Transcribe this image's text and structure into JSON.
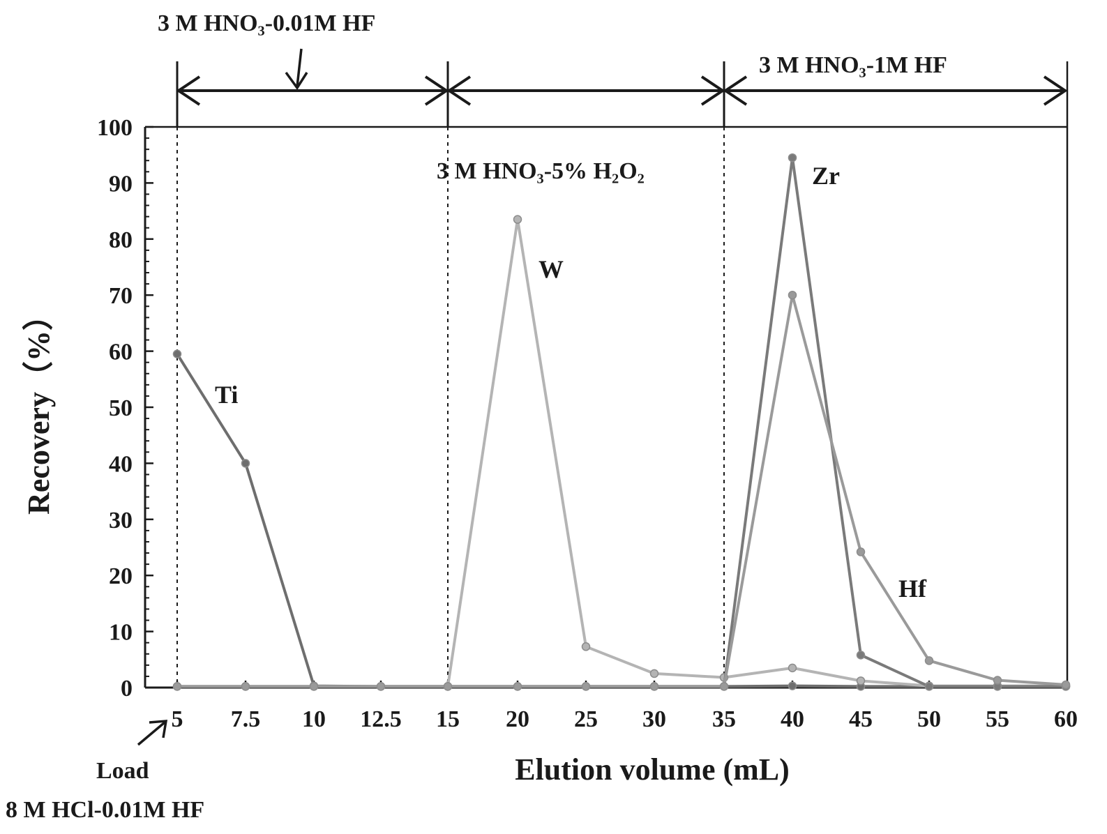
{
  "chart_data": {
    "type": "line",
    "xlabel": "Elution volume (mL)",
    "ylabel": "Recovery（%）",
    "x_ticks": [
      "5",
      "7.5",
      "10",
      "12.5",
      "15",
      "20",
      "25",
      "30",
      "35",
      "40",
      "45",
      "50",
      "55",
      "60"
    ],
    "y_ticks": [
      "0",
      "10",
      "20",
      "30",
      "40",
      "50",
      "60",
      "70",
      "80",
      "90",
      "100"
    ],
    "ylim": [
      0,
      100
    ],
    "grid": false,
    "x": [
      "5",
      "7.5",
      "10",
      "12.5",
      "15",
      "20",
      "25",
      "30",
      "35",
      "40",
      "45",
      "50",
      "55",
      "60"
    ],
    "series": [
      {
        "name": "Ti",
        "color": "#6e6e6e",
        "values": [
          59.5,
          40,
          0.3,
          0.2,
          0.2,
          0.2,
          0.2,
          0.2,
          0.2,
          0.3,
          0.2,
          0.2,
          0.2,
          0.2
        ]
      },
      {
        "name": "W",
        "color": "#b4b4b4",
        "values": [
          0.2,
          0.2,
          0.2,
          0.2,
          0.2,
          83.5,
          7.3,
          2.5,
          1.8,
          3.5,
          1.2,
          0.3,
          0.3,
          0.3
        ]
      },
      {
        "name": "Zr",
        "color": "#7a7a7a",
        "values": [
          0.2,
          0.2,
          0.2,
          0.2,
          0.2,
          0.2,
          0.2,
          0.2,
          0.2,
          94.5,
          5.8,
          0.2,
          0.2,
          0.2
        ]
      },
      {
        "name": "Hf",
        "color": "#9a9a9a",
        "values": [
          0.2,
          0.2,
          0.2,
          0.2,
          0.2,
          0.2,
          0.2,
          0.2,
          0.2,
          70,
          24.2,
          4.8,
          1.3,
          0.5
        ]
      }
    ],
    "annotations": {
      "load": "Load",
      "load_reagent": "8 M HCl-0.01M HF",
      "step1": "3 M HNO₃-0.01M HF",
      "step2": "3 M HNO₃-5% H₂O₂",
      "step3": "3 M HNO₃-1M HF"
    }
  }
}
